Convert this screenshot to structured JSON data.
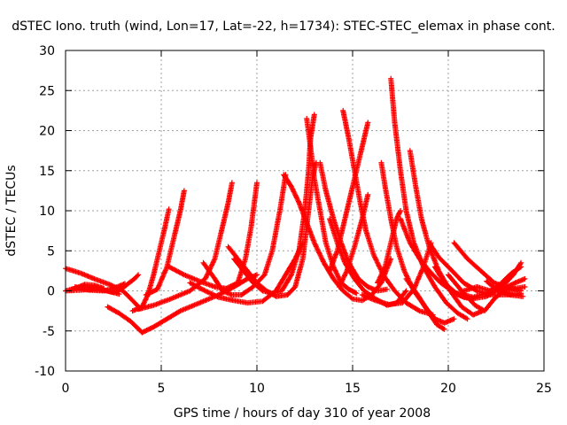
{
  "chart_data": {
    "type": "scatter",
    "title": "dSTEC Iono. truth (wind, Lon=17, Lat=-22, h=1734): STEC-STEC_elemax in phase cont.",
    "xlabel": "GPS time / hours of day 310 of year 2008",
    "ylabel": "dSTEC  / TECUs",
    "xlim": [
      0,
      25
    ],
    "ylim": [
      -10,
      30
    ],
    "xticks": [
      "0",
      "5",
      "10",
      "15",
      "20",
      "25"
    ],
    "yticks": [
      "-10",
      "-5",
      "0",
      "5",
      "10",
      "15",
      "20",
      "25",
      "30"
    ],
    "xtick_values": [
      0,
      5,
      10,
      15,
      20,
      25
    ],
    "ytick_values": [
      -10,
      -5,
      0,
      5,
      10,
      15,
      20,
      25,
      30
    ],
    "grid": true,
    "marker": "+",
    "color": "#ff0000",
    "series": [
      {
        "points": [
          [
            0,
            2.8
          ],
          [
            0.8,
            2.2
          ],
          [
            1.5,
            1.5
          ],
          [
            2.3,
            0.8
          ],
          [
            3,
            0
          ],
          [
            3.5,
            -1.2
          ],
          [
            3.9,
            -2.2
          ]
        ]
      },
      {
        "points": [
          [
            0,
            0
          ],
          [
            0.5,
            0.3
          ],
          [
            1,
            0.8
          ],
          [
            1.5,
            0.7
          ],
          [
            2,
            0.3
          ]
        ]
      },
      {
        "points": [
          [
            0.3,
            0.2
          ],
          [
            1,
            0.6
          ],
          [
            1.8,
            0.2
          ],
          [
            2.5,
            -0.2
          ],
          [
            3,
            0.4
          ],
          [
            3.6,
            1.5
          ],
          [
            3.8,
            2
          ]
        ]
      },
      {
        "points": [
          [
            0,
            0
          ],
          [
            0.8,
            0.1
          ],
          [
            1.5,
            0.2
          ],
          [
            2.2,
            0
          ],
          [
            2.8,
            -0.4
          ]
        ]
      },
      {
        "points": [
          [
            0.5,
            0.5
          ],
          [
            1.2,
            0.1
          ],
          [
            2,
            0
          ],
          [
            2.6,
            0.4
          ],
          [
            3.1,
            0.9
          ]
        ]
      },
      {
        "points": [
          [
            2.2,
            -2
          ],
          [
            2.8,
            -2.8
          ],
          [
            3.4,
            -3.8
          ],
          [
            4,
            -5.2
          ],
          [
            4.6,
            -4.5
          ],
          [
            5.3,
            -3.5
          ],
          [
            6,
            -2.5
          ],
          [
            7,
            -1.5
          ],
          [
            8,
            -0.5
          ],
          [
            8.8,
            0.5
          ],
          [
            9.5,
            1.5
          ],
          [
            10,
            2
          ]
        ]
      },
      {
        "points": [
          [
            3.5,
            -2.5
          ],
          [
            4,
            -2
          ],
          [
            4.3,
            -0.5
          ],
          [
            4.6,
            2
          ],
          [
            4.9,
            5
          ],
          [
            5.2,
            8
          ],
          [
            5.4,
            10.2
          ]
        ]
      },
      {
        "points": [
          [
            4.2,
            -0.5
          ],
          [
            4.8,
            0.2
          ],
          [
            5.3,
            3
          ],
          [
            5.7,
            7
          ],
          [
            6,
            10
          ],
          [
            6.2,
            12.5
          ]
        ]
      },
      {
        "points": [
          [
            3.8,
            -2.3
          ],
          [
            4.6,
            -1.8
          ],
          [
            5.5,
            -1
          ],
          [
            6.5,
            0
          ],
          [
            7.3,
            1.5
          ],
          [
            7.8,
            4
          ],
          [
            8.2,
            8
          ],
          [
            8.5,
            11
          ],
          [
            8.7,
            13.5
          ]
        ]
      },
      {
        "points": [
          [
            5.4,
            3
          ],
          [
            6.2,
            2
          ],
          [
            7,
            1.2
          ],
          [
            7.8,
            0.5
          ],
          [
            8.4,
            0.3
          ],
          [
            9,
            1
          ],
          [
            9.4,
            4
          ],
          [
            9.7,
            8
          ],
          [
            10,
            13.5
          ]
        ]
      },
      {
        "points": [
          [
            6.5,
            1
          ],
          [
            7.3,
            0
          ],
          [
            8,
            -0.8
          ],
          [
            8.8,
            -1.2
          ],
          [
            9.5,
            -1.5
          ],
          [
            10.3,
            -1.3
          ],
          [
            11,
            0
          ],
          [
            11.5,
            2
          ],
          [
            12,
            4
          ],
          [
            12.4,
            6
          ]
        ]
      },
      {
        "points": [
          [
            7.2,
            3.5
          ],
          [
            7.8,
            1.5
          ],
          [
            8.2,
            0
          ],
          [
            8.7,
            -0.5
          ],
          [
            9.2,
            -0.5
          ],
          [
            9.8,
            0.5
          ],
          [
            10.4,
            2
          ],
          [
            10.8,
            5
          ],
          [
            11.2,
            10
          ],
          [
            11.5,
            14.5
          ]
        ]
      },
      {
        "points": [
          [
            8.5,
            5.5
          ],
          [
            9,
            4
          ],
          [
            9.5,
            2.5
          ],
          [
            10,
            1
          ],
          [
            10.5,
            0
          ],
          [
            11,
            -0.7
          ],
          [
            11.6,
            -0.5
          ],
          [
            12,
            0.5
          ],
          [
            12.4,
            4
          ],
          [
            12.7,
            10
          ],
          [
            12.9,
            14
          ],
          [
            13.1,
            16
          ]
        ]
      },
      {
        "points": [
          [
            8.8,
            4
          ],
          [
            9.3,
            2.5
          ],
          [
            9.8,
            1
          ],
          [
            10.3,
            0
          ],
          [
            10.8,
            -0.3
          ],
          [
            11.3,
            0
          ],
          [
            11.8,
            2
          ],
          [
            12.2,
            5
          ],
          [
            12.5,
            10
          ],
          [
            12.7,
            15
          ],
          [
            12.8,
            19
          ],
          [
            13,
            22
          ]
        ]
      },
      {
        "points": [
          [
            11.4,
            14.5
          ],
          [
            11.8,
            13
          ],
          [
            12.2,
            11
          ],
          [
            12.6,
            8.5
          ],
          [
            13,
            6
          ],
          [
            13.5,
            3.5
          ],
          [
            14,
            1.5
          ],
          [
            14.5,
            0
          ],
          [
            15,
            -1
          ],
          [
            15.5,
            -1.2
          ],
          [
            16,
            -0.5
          ],
          [
            16.5,
            1
          ],
          [
            17,
            4
          ]
        ]
      },
      {
        "points": [
          [
            12.6,
            21.5
          ],
          [
            12.8,
            18
          ],
          [
            13,
            14
          ],
          [
            13.3,
            10
          ],
          [
            13.6,
            6
          ],
          [
            14,
            3
          ],
          [
            14.4,
            1
          ],
          [
            14.8,
            0.2
          ],
          [
            15.2,
            -0.3
          ]
        ]
      },
      {
        "points": [
          [
            13.3,
            16
          ],
          [
            13.6,
            12.5
          ],
          [
            14,
            9
          ],
          [
            14.4,
            6
          ],
          [
            14.8,
            3.5
          ],
          [
            15.3,
            1.5
          ],
          [
            15.8,
            0.5
          ],
          [
            16.3,
            0
          ],
          [
            16.8,
            0.2
          ]
        ]
      },
      {
        "points": [
          [
            13.8,
            9
          ],
          [
            14.2,
            6
          ],
          [
            14.6,
            3.5
          ],
          [
            15.1,
            1.5
          ],
          [
            15.6,
            0
          ],
          [
            16.2,
            -1
          ],
          [
            16.8,
            -1.8
          ],
          [
            17.3,
            -1.5
          ],
          [
            17.8,
            0
          ]
        ]
      },
      {
        "points": [
          [
            14.5,
            22.5
          ],
          [
            14.8,
            19
          ],
          [
            15.1,
            15
          ],
          [
            15.4,
            11
          ],
          [
            15.7,
            7.5
          ],
          [
            16.1,
            4.5
          ],
          [
            16.6,
            2
          ],
          [
            17.2,
            0
          ],
          [
            17.8,
            -1.5
          ],
          [
            18.5,
            -2.5
          ],
          [
            19.2,
            -3
          ]
        ]
      },
      {
        "points": [
          [
            13.8,
            2.5
          ],
          [
            14.2,
            5
          ],
          [
            14.6,
            9
          ],
          [
            15,
            13
          ],
          [
            15.3,
            16
          ],
          [
            15.6,
            19
          ],
          [
            15.8,
            21
          ]
        ]
      },
      {
        "points": [
          [
            14.3,
            0.5
          ],
          [
            14.7,
            2.5
          ],
          [
            15.1,
            5.5
          ],
          [
            15.5,
            9
          ],
          [
            15.8,
            12
          ]
        ]
      },
      {
        "points": [
          [
            16.5,
            16
          ],
          [
            16.7,
            13
          ],
          [
            17,
            9
          ],
          [
            17.3,
            5.5
          ],
          [
            17.7,
            2.5
          ],
          [
            18.2,
            0
          ],
          [
            18.8,
            -2
          ],
          [
            19.3,
            -3.5
          ],
          [
            19.8,
            -4
          ],
          [
            20.3,
            -3.5
          ]
        ]
      },
      {
        "points": [
          [
            17,
            26.5
          ],
          [
            17.2,
            21
          ],
          [
            17.5,
            15
          ],
          [
            17.8,
            10
          ],
          [
            18.2,
            6
          ],
          [
            18.7,
            3
          ],
          [
            19.3,
            0.5
          ],
          [
            19.9,
            -1.5
          ],
          [
            20.5,
            -2.8
          ],
          [
            21,
            -3.5
          ]
        ]
      },
      {
        "points": [
          [
            16.3,
            1
          ],
          [
            16.7,
            3
          ],
          [
            17,
            6
          ],
          [
            17.3,
            9
          ],
          [
            17.5,
            10
          ]
        ]
      },
      {
        "points": [
          [
            15.5,
            -0.5
          ],
          [
            16.2,
            -1.2
          ],
          [
            16.9,
            -1.7
          ],
          [
            17.6,
            -1.5
          ],
          [
            18.2,
            0.2
          ],
          [
            18.7,
            3
          ],
          [
            19.1,
            6
          ]
        ]
      },
      {
        "points": [
          [
            17.5,
            9
          ],
          [
            18,
            6
          ],
          [
            18.5,
            4
          ],
          [
            19,
            2.5
          ],
          [
            19.6,
            1
          ],
          [
            20.2,
            0
          ],
          [
            20.8,
            -0.8
          ],
          [
            21.3,
            -1
          ]
        ]
      },
      {
        "points": [
          [
            18,
            17.5
          ],
          [
            18.3,
            13
          ],
          [
            18.6,
            9
          ],
          [
            19,
            5.5
          ],
          [
            19.5,
            2.5
          ],
          [
            20.1,
            0
          ],
          [
            20.7,
            -2
          ],
          [
            21.3,
            -3
          ],
          [
            21.8,
            -2.5
          ]
        ]
      },
      {
        "points": [
          [
            17.8,
            1.5
          ],
          [
            18.4,
            -0.5
          ],
          [
            19,
            -2.8
          ],
          [
            19.4,
            -4.2
          ],
          [
            19.8,
            -4.8
          ]
        ]
      },
      {
        "points": [
          [
            19,
            6
          ],
          [
            19.5,
            4.2
          ],
          [
            20.2,
            2.5
          ],
          [
            20.8,
            1
          ],
          [
            21.5,
            0
          ],
          [
            22.2,
            -0.5
          ],
          [
            23,
            -0.5
          ],
          [
            23.8,
            -0.3
          ]
        ]
      },
      {
        "points": [
          [
            20.3,
            6
          ],
          [
            21,
            4
          ],
          [
            21.7,
            2.5
          ],
          [
            22.4,
            1
          ],
          [
            23,
            0.5
          ],
          [
            23.8,
            0
          ]
        ]
      },
      {
        "points": [
          [
            19.3,
            3
          ],
          [
            19.8,
            1
          ],
          [
            20.5,
            -0.5
          ],
          [
            21.2,
            -1
          ],
          [
            22,
            -0.7
          ],
          [
            22.8,
            0.5
          ],
          [
            23.4,
            2
          ],
          [
            23.8,
            3.5
          ]
        ]
      },
      {
        "points": [
          [
            20.8,
            0
          ],
          [
            21.5,
            0.5
          ],
          [
            22.2,
            0
          ],
          [
            22.9,
            0.3
          ],
          [
            23.5,
            1
          ],
          [
            24,
            1.5
          ]
        ]
      },
      {
        "points": [
          [
            20,
            2
          ],
          [
            20.7,
            0
          ],
          [
            21.4,
            -1.8
          ],
          [
            21.9,
            -2.5
          ],
          [
            22.4,
            -1
          ],
          [
            22.9,
            0
          ],
          [
            23.5,
            0.3
          ],
          [
            24,
            0.5
          ]
        ]
      },
      {
        "points": [
          [
            20.5,
            -0.3
          ],
          [
            21.3,
            -0.8
          ],
          [
            22,
            -0.3
          ],
          [
            22.7,
            0.8
          ],
          [
            23.3,
            2.2
          ],
          [
            23.8,
            3
          ]
        ]
      },
      {
        "points": [
          [
            22,
            1.2
          ],
          [
            22.6,
            0
          ],
          [
            23.2,
            -0.5
          ],
          [
            23.9,
            -0.7
          ]
        ]
      }
    ]
  }
}
